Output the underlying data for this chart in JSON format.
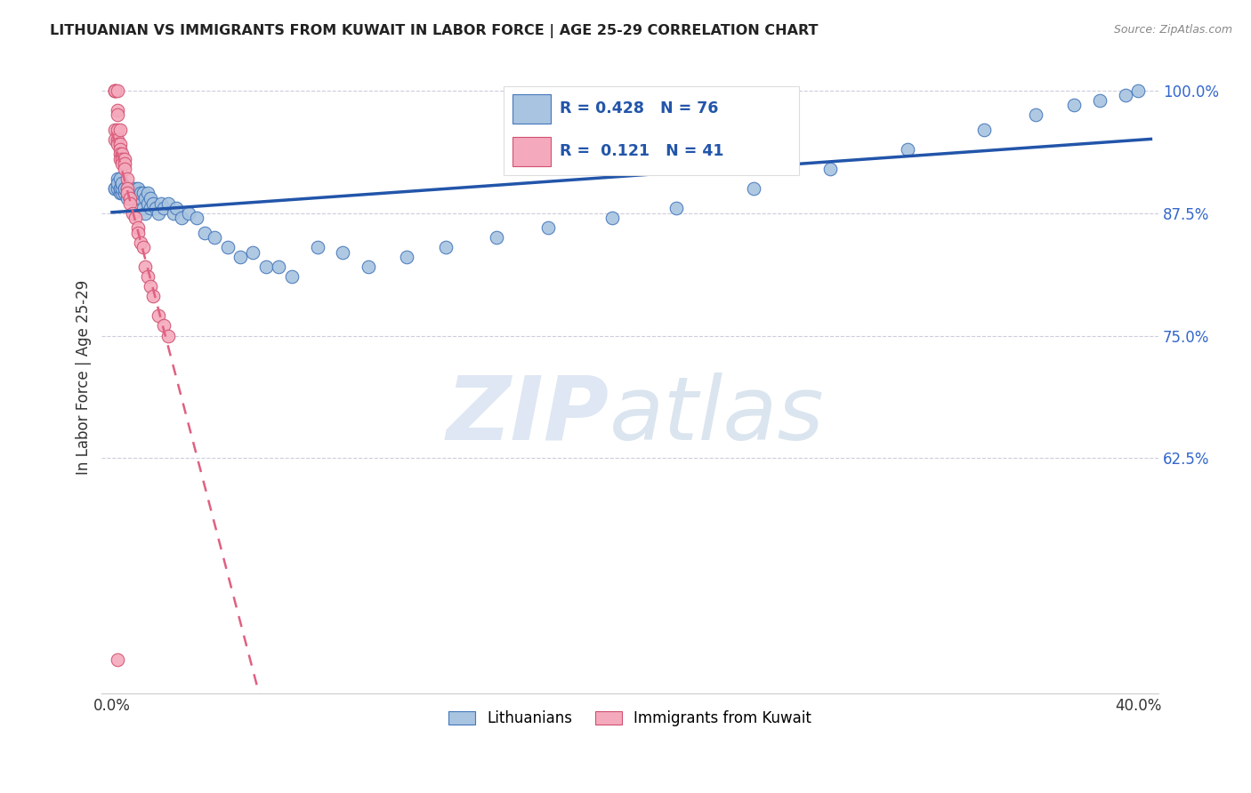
{
  "title": "LITHUANIAN VS IMMIGRANTS FROM KUWAIT IN LABOR FORCE | AGE 25-29 CORRELATION CHART",
  "source": "Source: ZipAtlas.com",
  "ylabel": "In Labor Force | Age 25-29",
  "xlim": [
    -0.004,
    0.408
  ],
  "ylim": [
    0.385,
    1.03
  ],
  "xticks": [
    0.0,
    0.05,
    0.1,
    0.15,
    0.2,
    0.25,
    0.3,
    0.35,
    0.4
  ],
  "yticks": [
    0.625,
    0.75,
    0.875,
    1.0
  ],
  "yticklabels": [
    "62.5%",
    "75.0%",
    "87.5%",
    "100.0%"
  ],
  "legend_r_blue": "R = 0.428",
  "legend_n_blue": "N = 76",
  "legend_r_pink": "R =  0.121",
  "legend_n_pink": "N = 41",
  "blue_color": "#A8C4E0",
  "blue_edge_color": "#4477BB",
  "pink_color": "#F4AABC",
  "pink_edge_color": "#D05070",
  "trendline_blue_color": "#2255AA",
  "trendline_pink_color": "#E06080",
  "watermark_zip_color": "#C8D8EC",
  "watermark_atlas_color": "#B0C8E0",
  "blue_scatter_x": [
    0.001,
    0.001,
    0.002,
    0.002,
    0.002,
    0.003,
    0.003,
    0.003,
    0.003,
    0.004,
    0.004,
    0.004,
    0.005,
    0.005,
    0.005,
    0.006,
    0.006,
    0.006,
    0.007,
    0.007,
    0.007,
    0.008,
    0.008,
    0.008,
    0.009,
    0.009,
    0.01,
    0.01,
    0.01,
    0.011,
    0.011,
    0.012,
    0.012,
    0.013,
    0.013,
    0.014,
    0.014,
    0.015,
    0.015,
    0.016,
    0.017,
    0.018,
    0.019,
    0.02,
    0.022,
    0.024,
    0.025,
    0.027,
    0.03,
    0.033,
    0.036,
    0.04,
    0.045,
    0.05,
    0.055,
    0.06,
    0.065,
    0.07,
    0.08,
    0.09,
    0.1,
    0.115,
    0.13,
    0.15,
    0.17,
    0.195,
    0.22,
    0.25,
    0.28,
    0.31,
    0.34,
    0.36,
    0.375,
    0.385,
    0.395,
    0.4
  ],
  "blue_scatter_y": [
    0.9,
    0.9,
    0.91,
    0.9,
    0.905,
    0.9,
    0.895,
    0.9,
    0.91,
    0.895,
    0.9,
    0.905,
    0.9,
    0.895,
    0.9,
    0.895,
    0.89,
    0.9,
    0.89,
    0.895,
    0.9,
    0.895,
    0.895,
    0.89,
    0.895,
    0.9,
    0.89,
    0.895,
    0.9,
    0.89,
    0.895,
    0.88,
    0.895,
    0.875,
    0.89,
    0.885,
    0.895,
    0.88,
    0.89,
    0.885,
    0.88,
    0.875,
    0.885,
    0.88,
    0.885,
    0.875,
    0.88,
    0.87,
    0.875,
    0.87,
    0.855,
    0.85,
    0.84,
    0.83,
    0.835,
    0.82,
    0.82,
    0.81,
    0.84,
    0.835,
    0.82,
    0.83,
    0.84,
    0.85,
    0.86,
    0.87,
    0.88,
    0.9,
    0.92,
    0.94,
    0.96,
    0.975,
    0.985,
    0.99,
    0.995,
    1.0
  ],
  "pink_scatter_x": [
    0.001,
    0.001,
    0.001,
    0.001,
    0.001,
    0.002,
    0.002,
    0.002,
    0.002,
    0.002,
    0.002,
    0.003,
    0.003,
    0.003,
    0.003,
    0.003,
    0.004,
    0.004,
    0.004,
    0.005,
    0.005,
    0.005,
    0.006,
    0.006,
    0.006,
    0.007,
    0.007,
    0.008,
    0.009,
    0.01,
    0.01,
    0.011,
    0.012,
    0.013,
    0.014,
    0.015,
    0.016,
    0.018,
    0.02,
    0.022,
    0.002
  ],
  "pink_scatter_y": [
    1.0,
    1.0,
    1.0,
    0.96,
    0.95,
    1.0,
    0.98,
    0.975,
    0.96,
    0.95,
    0.945,
    0.96,
    0.945,
    0.94,
    0.935,
    0.93,
    0.935,
    0.93,
    0.925,
    0.93,
    0.925,
    0.92,
    0.91,
    0.9,
    0.895,
    0.89,
    0.885,
    0.875,
    0.87,
    0.86,
    0.855,
    0.845,
    0.84,
    0.82,
    0.81,
    0.8,
    0.79,
    0.77,
    0.76,
    0.75,
    0.42
  ]
}
